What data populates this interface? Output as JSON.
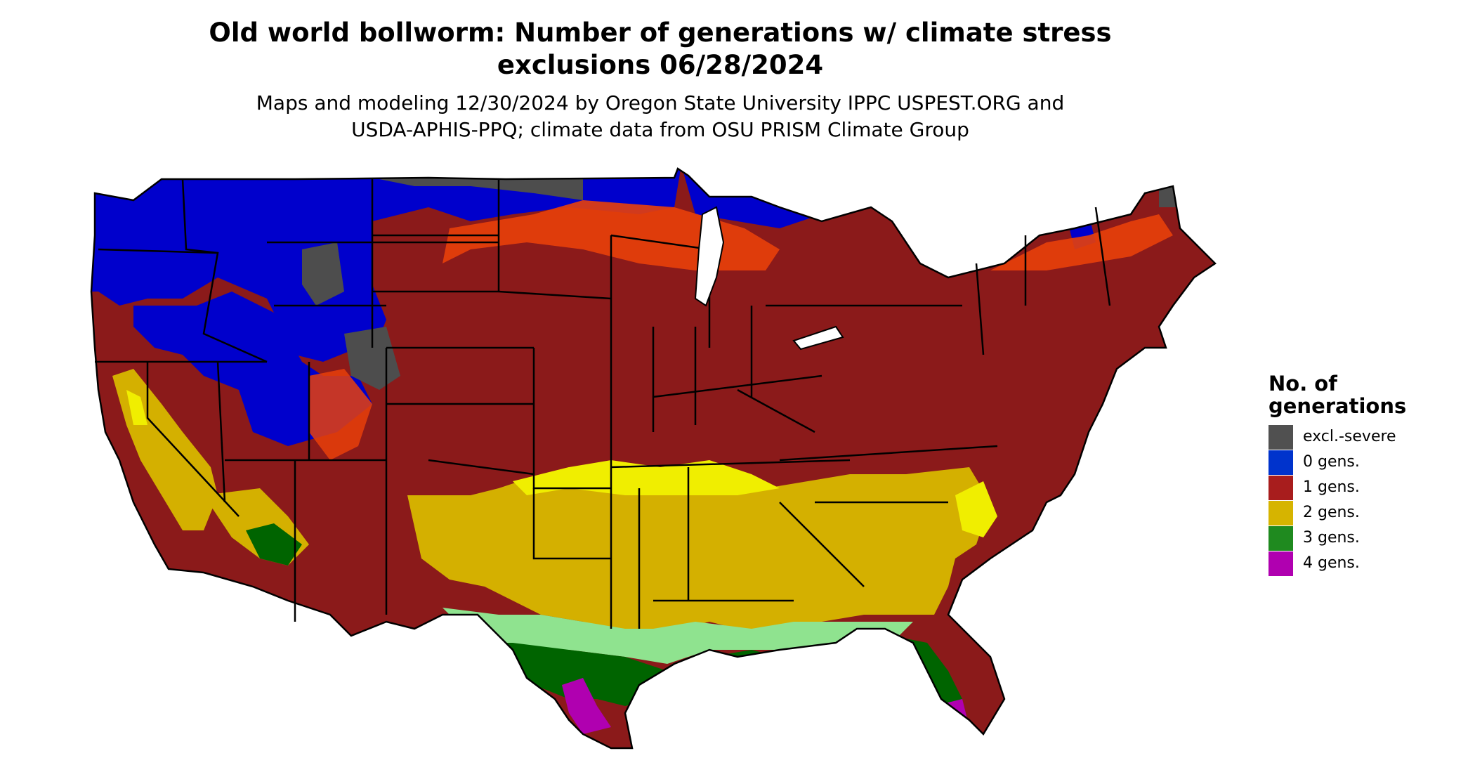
{
  "header": {
    "title_line_1": "Old world bollworm: Number of generations w/ climate stress",
    "title_line_2": "exclusions 06/28/2024",
    "subtitle_line_1": "Maps and modeling 12/30/2024 by Oregon State University IPPC USPEST.ORG and",
    "subtitle_line_2": "USDA-APHIS-PPQ; climate data from OSU PRISM Climate Group"
  },
  "map": {
    "region": "Contiguous United States",
    "boundaries": "state outlines",
    "colors": {
      "border": "#000000",
      "coast_light_green": "#8fe38f",
      "bright_yellow": "#f0ee00",
      "orange_red": "#e8400a"
    }
  },
  "legend": {
    "title": "No. of\ngenerations",
    "items": [
      {
        "label": "excl.-severe",
        "color": "#505050"
      },
      {
        "label": "0 gens.",
        "color": "#0033cc"
      },
      {
        "label": "1 gens.",
        "color": "#a81d1d"
      },
      {
        "label": "2 gens.",
        "color": "#d6b400"
      },
      {
        "label": "3 gens.",
        "color": "#1f8a1f"
      },
      {
        "label": "4 gens.",
        "color": "#b000b0"
      }
    ]
  }
}
